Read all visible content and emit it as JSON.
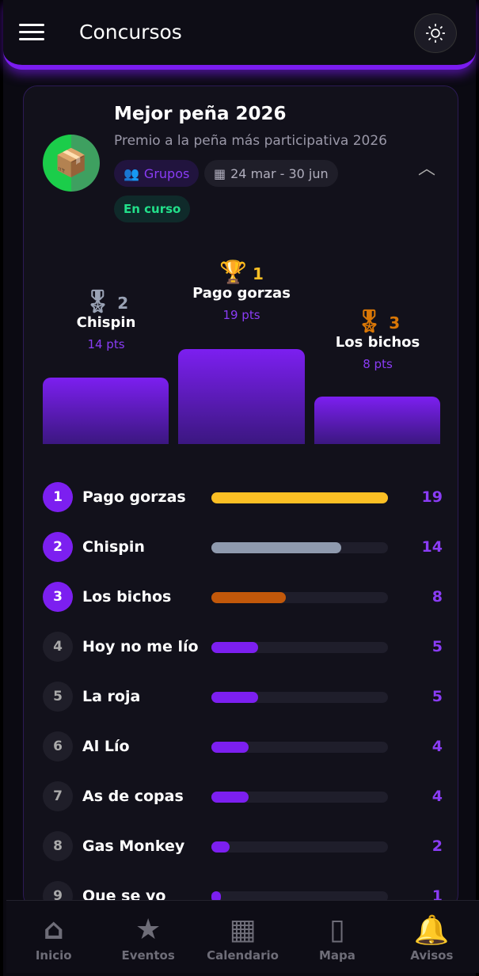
{
  "header": {
    "title": "Concursos"
  },
  "contest": {
    "title": "Mejor peña 2026",
    "subtitle": "Premio a la peña más participativa 2026",
    "type": "Grupos",
    "dates": "24 mar - 30 jun",
    "status": "En curso"
  },
  "podium": [
    {
      "rank": "2",
      "name": "Chispin",
      "points": "14 pts",
      "color": "#9aa3b5"
    },
    {
      "rank": "1",
      "name": "Pago gorzas",
      "points": "19 pts",
      "color": "#fbbf24"
    },
    {
      "rank": "3",
      "name": "Los bichos",
      "points": "8 pts",
      "color": "#d97706"
    }
  ],
  "ranking": [
    {
      "rank": "1",
      "name": "Pago gorzas",
      "points": "19",
      "fraction": 1.0,
      "color": "#fbbf24"
    },
    {
      "rank": "2",
      "name": "Chispin",
      "points": "14",
      "fraction": 0.737,
      "color": "#8f9aae"
    },
    {
      "rank": "3",
      "name": "Los bichos",
      "points": "8",
      "fraction": 0.421,
      "color": "#c2580a"
    },
    {
      "rank": "4",
      "name": "Hoy no me lío",
      "points": "5",
      "fraction": 0.263,
      "color": "#7c1ff0"
    },
    {
      "rank": "5",
      "name": "La roja",
      "points": "5",
      "fraction": 0.263,
      "color": "#7c1ff0"
    },
    {
      "rank": "6",
      "name": "Al Lío",
      "points": "4",
      "fraction": 0.211,
      "color": "#7c1ff0"
    },
    {
      "rank": "7",
      "name": "As de copas",
      "points": "4",
      "fraction": 0.211,
      "color": "#7c1ff0"
    },
    {
      "rank": "8",
      "name": "Gas Monkey",
      "points": "2",
      "fraction": 0.105,
      "color": "#7c1ff0"
    },
    {
      "rank": "9",
      "name": "Que se yo",
      "points": "1",
      "fraction": 0.053,
      "color": "#7c1ff0"
    }
  ],
  "nav": [
    {
      "label": "Inicio",
      "icon": "home-icon"
    },
    {
      "label": "Eventos",
      "icon": "star-icon"
    },
    {
      "label": "Calendario",
      "icon": "calendar-icon"
    },
    {
      "label": "Mapa",
      "icon": "map-icon"
    },
    {
      "label": "Avisos",
      "icon": "bell-icon"
    }
  ]
}
